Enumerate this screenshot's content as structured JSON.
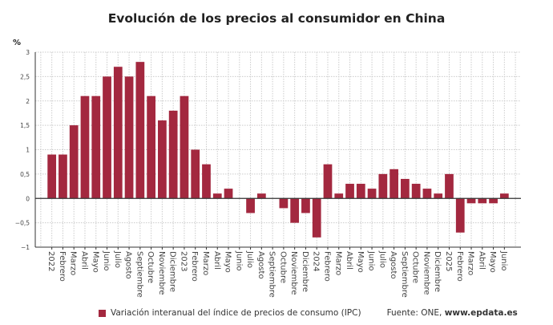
{
  "chart_data": {
    "type": "bar",
    "title": "Evolución de los precios al consumidor en China",
    "ylabel": "%",
    "ylim": [
      -1,
      3
    ],
    "yticks": [
      3,
      2.5,
      2,
      1.5,
      1,
      0.5,
      0,
      -0.5,
      -1
    ],
    "ytick_labels": [
      "3",
      "2,5",
      "2",
      "1,5",
      "1",
      "0,5",
      "0",
      "−0,5",
      "−1"
    ],
    "grid": true,
    "legend_position": "bottom",
    "categories": [
      "2022",
      "Febrero",
      "Marzo",
      "Abril",
      "Mayo",
      "Junio",
      "Julio",
      "Agosto",
      "Septiembre",
      "Octubre",
      "Noviembre",
      "Diciembre",
      "2023",
      "Febrero",
      "Marzo",
      "Abril",
      "Mayo",
      "Junio",
      "Julio",
      "Agosto",
      "Septiembre",
      "Octubre",
      "Noviembre",
      "Diciembre",
      "2024",
      "Febrero",
      "Marzo",
      "Abril",
      "Mayo",
      "Junio",
      "Julio",
      "Agosto",
      "Septiembre",
      "Octubre",
      "Noviembre",
      "Diciembre",
      "2025",
      "Febrero",
      "Marzo",
      "Abril",
      "Mayo",
      "Junio"
    ],
    "series": [
      {
        "name": "Variación interanual del índice de precios de consumo (IPC)",
        "color": "#a3283f",
        "values": [
          0.9,
          0.9,
          1.5,
          2.1,
          2.1,
          2.5,
          2.7,
          2.5,
          2.8,
          2.1,
          1.6,
          1.8,
          2.1,
          1.0,
          0.7,
          0.1,
          0.2,
          0,
          -0.3,
          0.1,
          0,
          -0.2,
          -0.5,
          -0.3,
          -0.8,
          0.7,
          0.1,
          0.3,
          0.3,
          0.2,
          0.5,
          0.6,
          0.4,
          0.3,
          0.2,
          0.1,
          0.5,
          -0.7,
          -0.1,
          -0.1,
          -0.1,
          0.1
        ]
      }
    ]
  },
  "source": {
    "prefix": "Fuente: ONE, ",
    "site": "www.epdata.es"
  }
}
